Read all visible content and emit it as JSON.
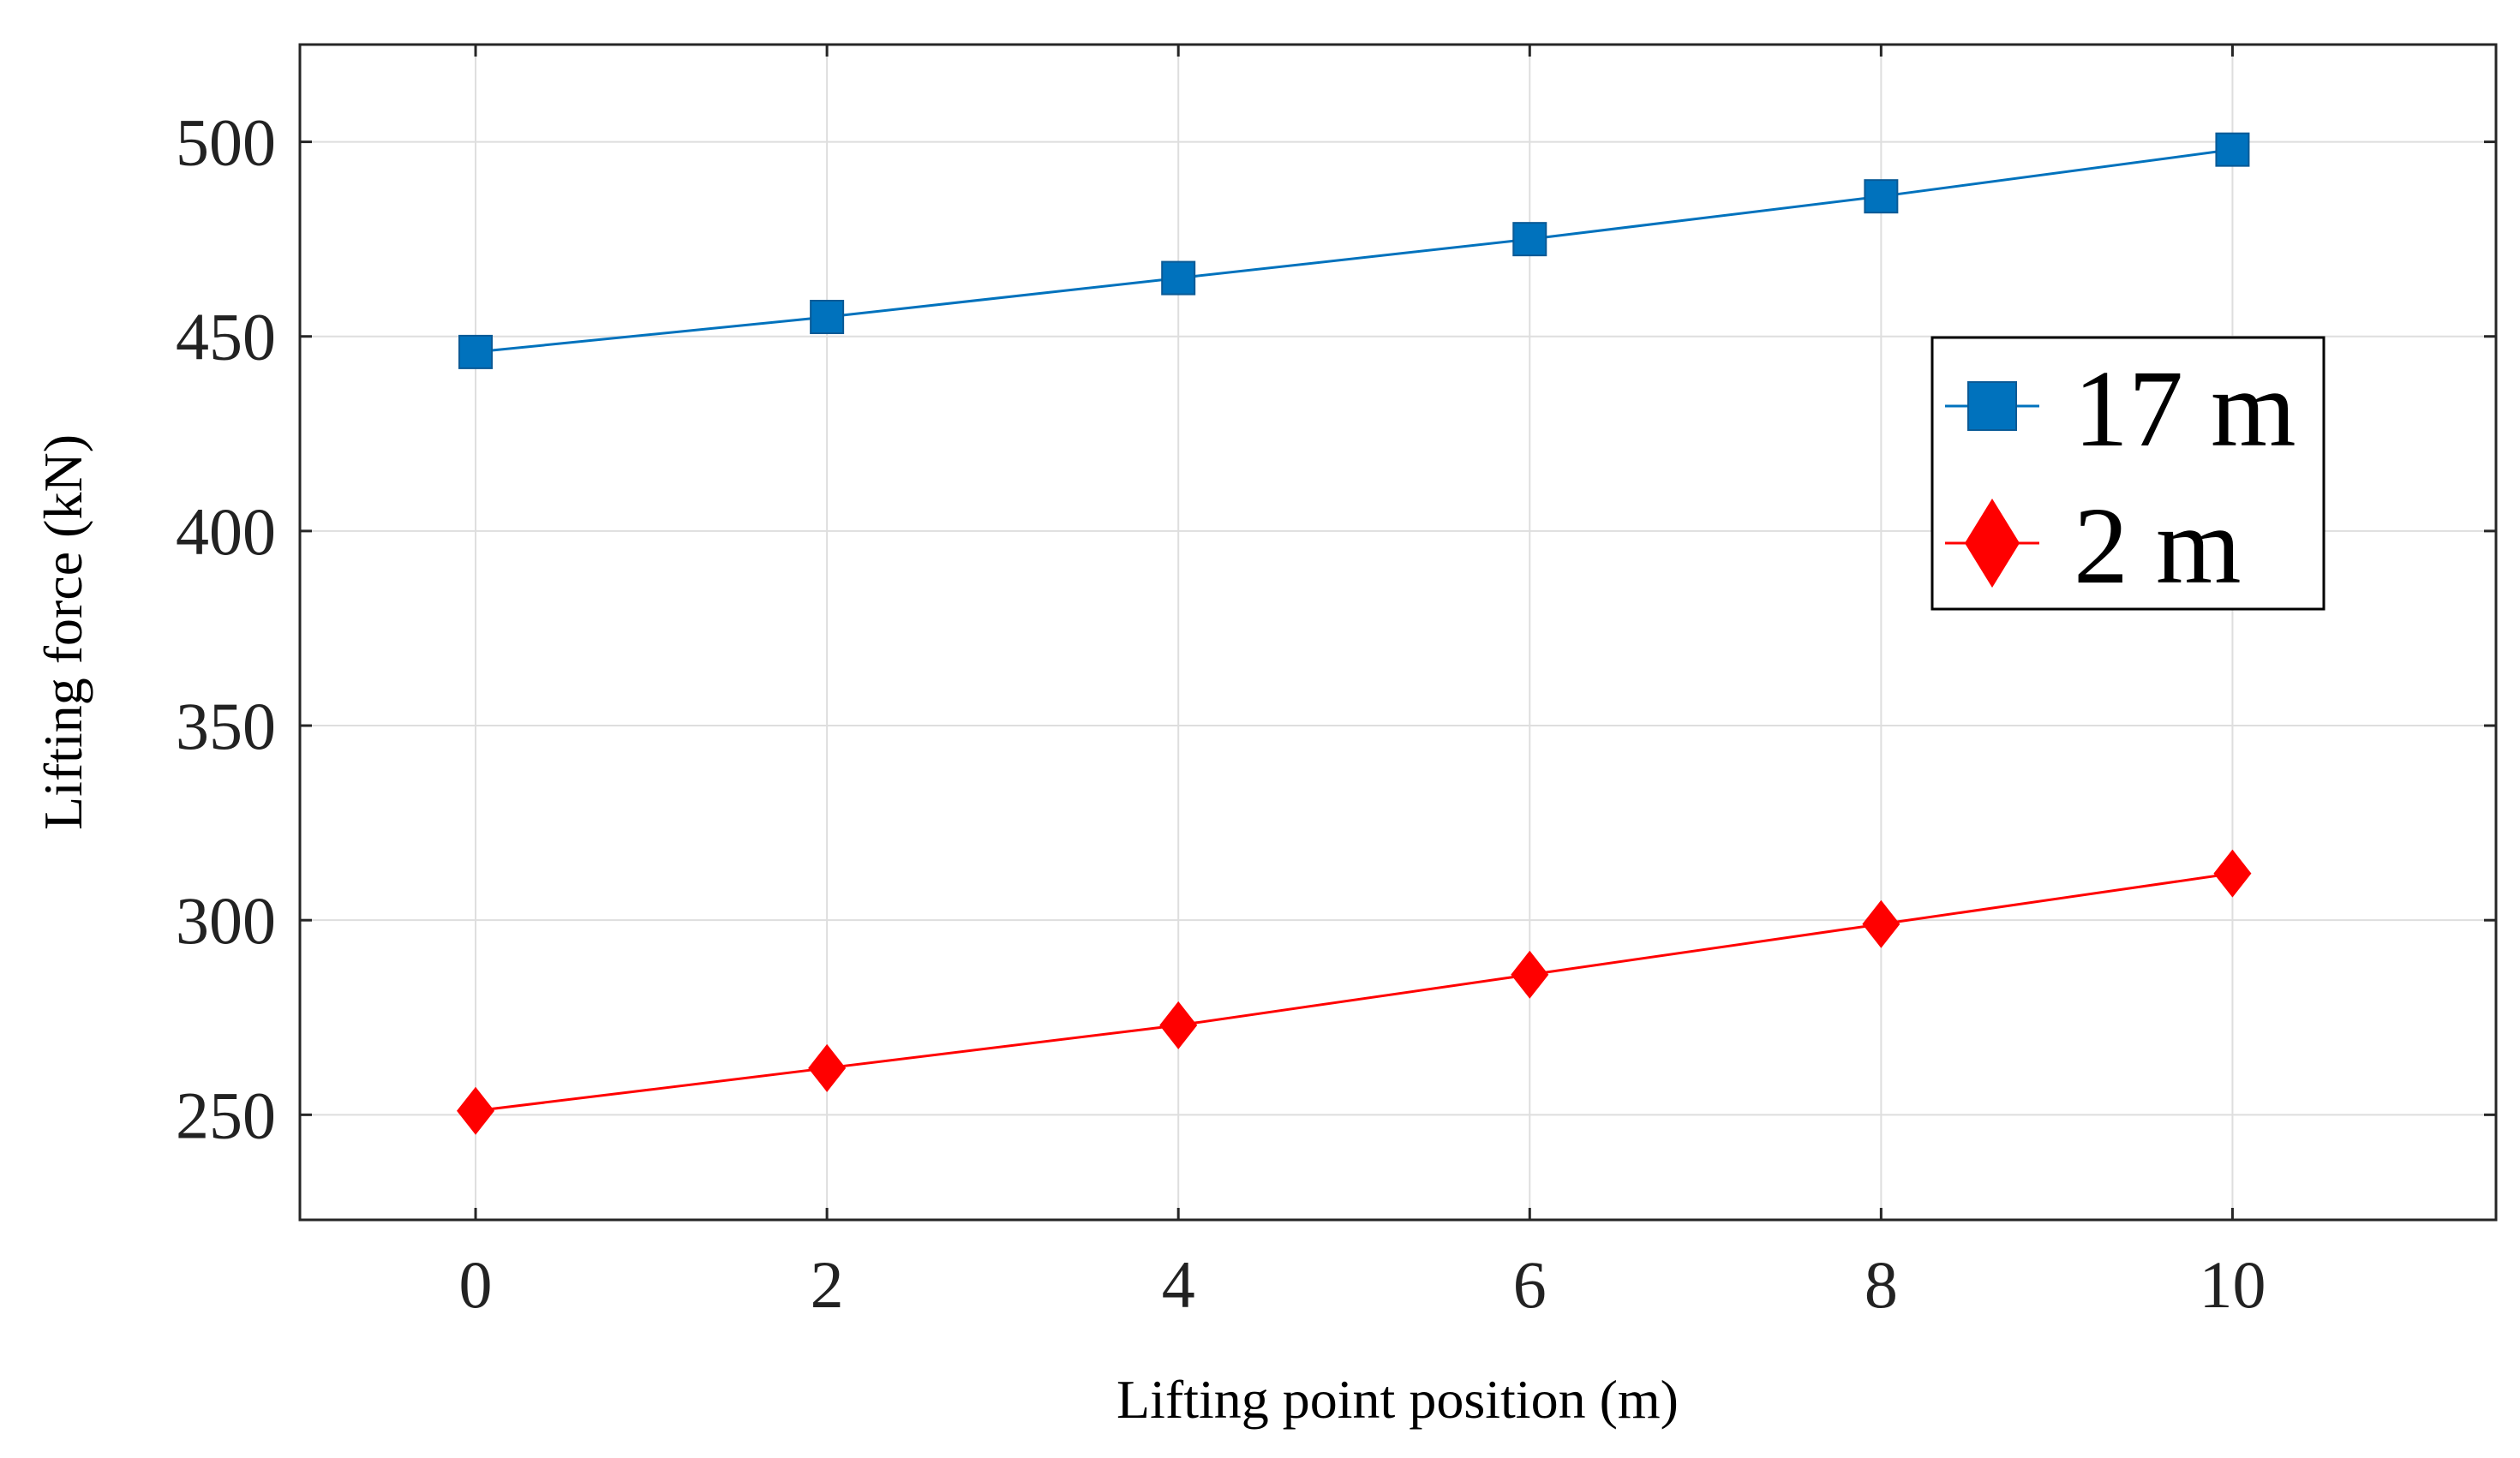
{
  "chart_data": {
    "type": "line",
    "title": "",
    "xlabel": "Lifting point position (m)",
    "ylabel": "Lifting force (kN)",
    "xlim": [
      -1,
      11.5
    ],
    "ylim": [
      223,
      525
    ],
    "x_ticks": [
      0,
      2,
      4,
      6,
      8,
      10
    ],
    "y_ticks": [
      250,
      300,
      350,
      400,
      450,
      500
    ],
    "grid": true,
    "legend_position": "right",
    "x": [
      0,
      2,
      4,
      6,
      8,
      10
    ],
    "series": [
      {
        "name": "17 m",
        "values": [
          446,
          455,
          465,
          475,
          486,
          498
        ],
        "color": "#0072bd",
        "marker": "square"
      },
      {
        "name": "2 m",
        "values": [
          251,
          262,
          273,
          286,
          299,
          312
        ],
        "color": "#ff0000",
        "marker": "diamond"
      }
    ]
  }
}
